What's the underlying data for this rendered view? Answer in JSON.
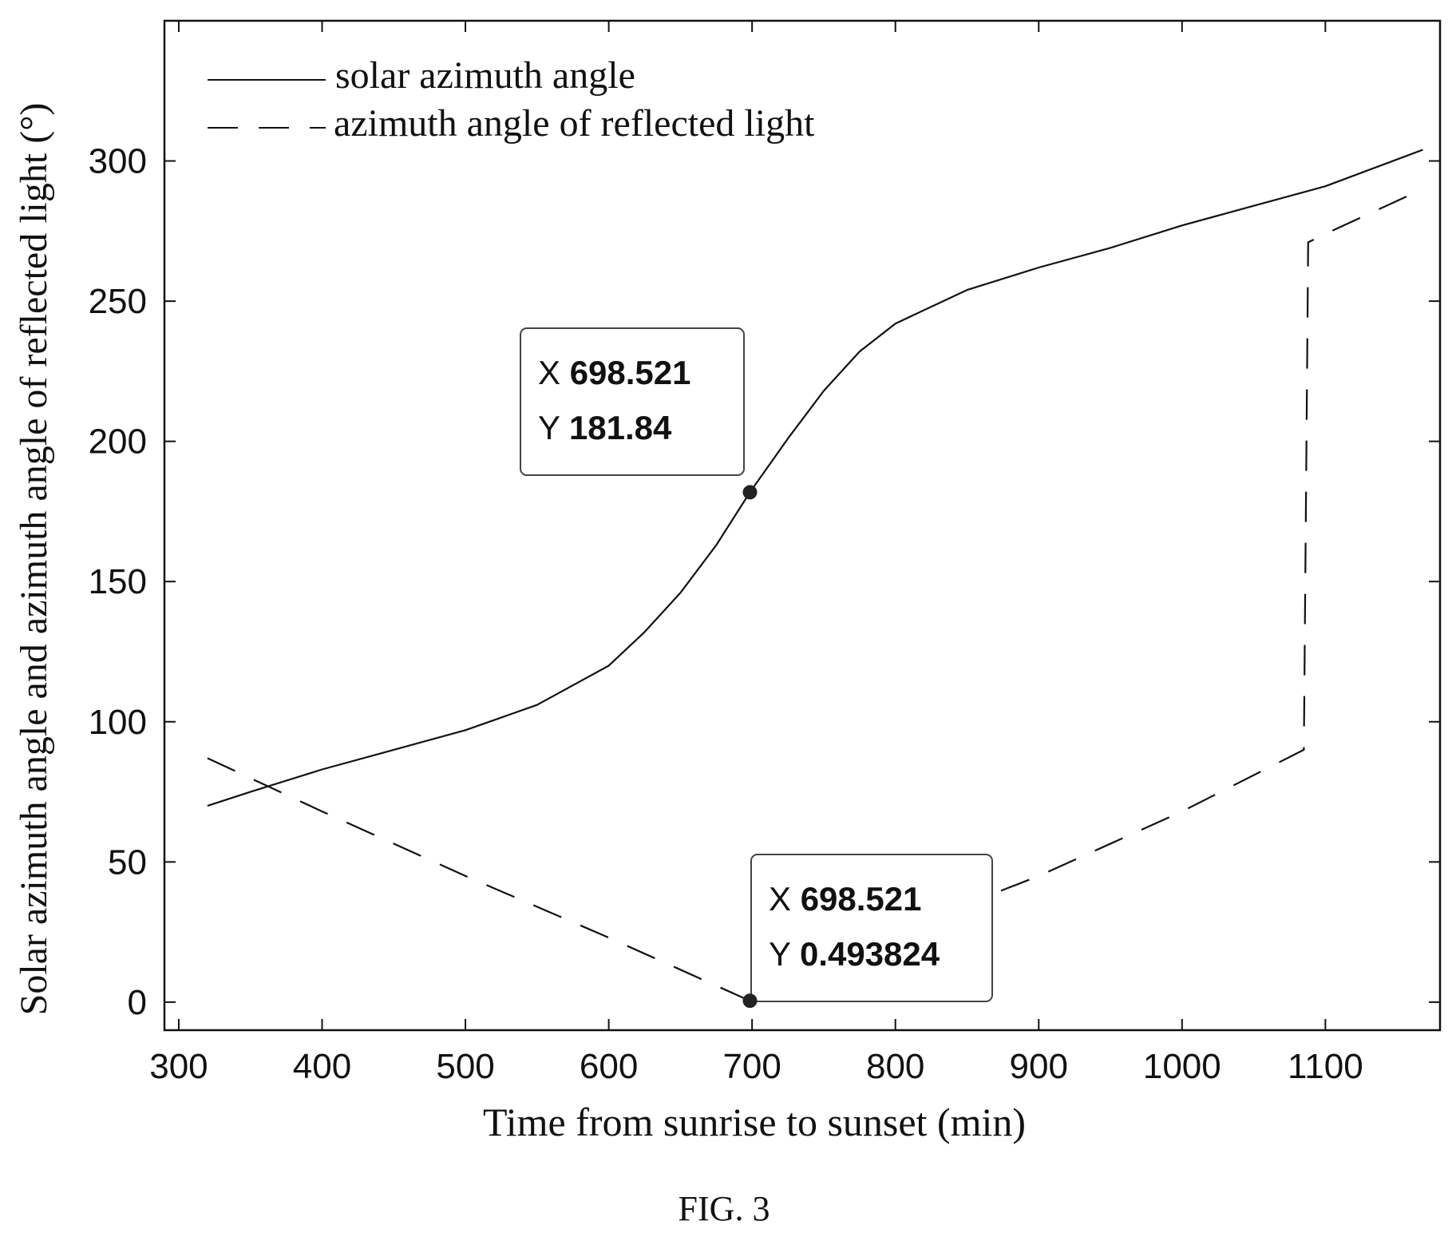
{
  "chart_data": {
    "type": "line",
    "title": "",
    "xlabel": "Time from sunrise to sunset (min)",
    "ylabel": "Solar azimuth angle and azimuth angle of reflected light (°)",
    "xlim": [
      290,
      1180
    ],
    "ylim": [
      -10,
      350
    ],
    "xticks": [
      300,
      400,
      500,
      600,
      700,
      800,
      900,
      1000,
      1100
    ],
    "yticks": [
      0,
      50,
      100,
      150,
      200,
      250,
      300
    ],
    "grid": false,
    "legend_position": "top-left",
    "series": [
      {
        "name": "solar azimuth angle",
        "style": "solid",
        "color": "#111111",
        "x": [
          320,
          350,
          400,
          450,
          500,
          550,
          600,
          625,
          650,
          675,
          698.521,
          725,
          750,
          775,
          800,
          850,
          900,
          950,
          1000,
          1050,
          1100,
          1168
        ],
        "y": [
          70,
          75,
          83,
          90,
          97,
          106,
          120,
          132,
          146,
          163,
          181.84,
          201,
          218,
          232,
          242,
          254,
          262,
          269,
          277,
          284,
          291,
          304
        ]
      },
      {
        "name": "azimuth angle of reflected light",
        "style": "dashed",
        "color": "#111111",
        "x": [
          320,
          400,
          500,
          600,
          698.521,
          800,
          900,
          1000,
          1085,
          1088,
          1100,
          1168
        ],
        "y": [
          87,
          68,
          45,
          23,
          0.493824,
          25,
          45,
          68,
          90,
          271,
          274,
          290
        ]
      }
    ],
    "annotations": [
      {
        "x": 698.521,
        "y": 181.84,
        "label_x": "X",
        "value_x": "698.521",
        "label_y": "Y",
        "value_y": "181.84"
      },
      {
        "x": 698.521,
        "y": 0.493824,
        "label_x": "X",
        "value_x": "698.521",
        "label_y": "Y",
        "value_y": "0.493824"
      }
    ]
  },
  "caption": "FIG. 3"
}
